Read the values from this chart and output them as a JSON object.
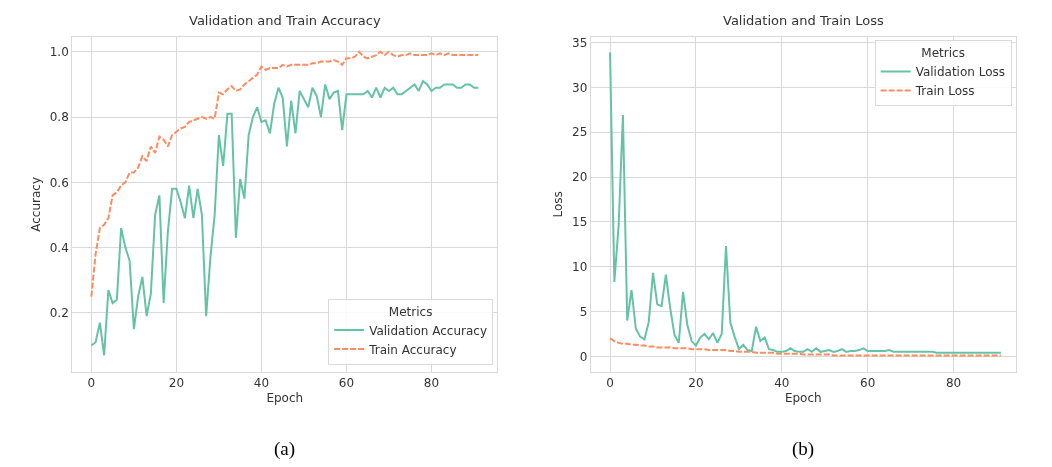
{
  "chart_data": [
    {
      "type": "line",
      "title": "Validation and Train Accuracy",
      "xlabel": "Epoch",
      "ylabel": "Accuracy",
      "legend_title": "Metrics",
      "legend": "bottom right",
      "grid": true,
      "marker": "none",
      "x": [
        0,
        1,
        2,
        3,
        4,
        5,
        6,
        7,
        8,
        9,
        10,
        11,
        12,
        13,
        14,
        15,
        16,
        17,
        18,
        19,
        20,
        21,
        22,
        23,
        24,
        25,
        26,
        27,
        28,
        29,
        30,
        31,
        32,
        33,
        34,
        35,
        36,
        37,
        38,
        39,
        40,
        41,
        42,
        43,
        44,
        45,
        46,
        47,
        48,
        49,
        50,
        51,
        52,
        53,
        54,
        55,
        56,
        57,
        58,
        59,
        60,
        61,
        62,
        63,
        64,
        65,
        66,
        67,
        68,
        69,
        70,
        71,
        72,
        73,
        74,
        75,
        76,
        77,
        78,
        79,
        80,
        81,
        82,
        83,
        84,
        85,
        86,
        87,
        88,
        89,
        90,
        91
      ],
      "xlim": [
        -4.5,
        95.5
      ],
      "xticks": [
        0,
        20,
        40,
        60,
        80
      ],
      "ylim": [
        0.02,
        1.045
      ],
      "yticks": [
        {
          "value": 0.2,
          "label": "0.2"
        },
        {
          "value": 0.4,
          "label": "0.4"
        },
        {
          "value": 0.6,
          "label": "0.6"
        },
        {
          "value": 0.8,
          "label": "0.8"
        },
        {
          "value": 1.0,
          "label": "1.0"
        }
      ],
      "series": [
        {
          "name": "Validation Accuracy",
          "color": "#66c2a5",
          "line_style": "solid",
          "values": [
            0.1,
            0.11,
            0.17,
            0.07,
            0.27,
            0.23,
            0.24,
            0.46,
            0.4,
            0.36,
            0.15,
            0.25,
            0.31,
            0.19,
            0.26,
            0.5,
            0.56,
            0.23,
            0.45,
            0.58,
            0.58,
            0.54,
            0.49,
            0.59,
            0.49,
            0.58,
            0.5,
            0.19,
            0.37,
            0.5,
            0.745,
            0.65,
            0.81,
            0.81,
            0.43,
            0.61,
            0.55,
            0.745,
            0.8,
            0.83,
            0.785,
            0.79,
            0.75,
            0.84,
            0.89,
            0.86,
            0.71,
            0.85,
            0.75,
            0.88,
            0.855,
            0.83,
            0.89,
            0.865,
            0.8,
            0.9,
            0.855,
            0.875,
            0.88,
            0.76,
            0.87,
            0.87,
            0.87,
            0.87,
            0.87,
            0.88,
            0.86,
            0.89,
            0.86,
            0.89,
            0.88,
            0.89,
            0.87,
            0.87,
            0.88,
            0.89,
            0.9,
            0.88,
            0.91,
            0.9,
            0.88,
            0.89,
            0.89,
            0.9,
            0.9,
            0.9,
            0.89,
            0.89,
            0.9,
            0.9,
            0.89,
            0.89
          ]
        },
        {
          "name": "Train Accuracy",
          "color": "#fc8d62",
          "line_style": "dashed",
          "values": [
            0.25,
            0.38,
            0.46,
            0.47,
            0.49,
            0.56,
            0.57,
            0.59,
            0.6,
            0.63,
            0.63,
            0.645,
            0.68,
            0.665,
            0.71,
            0.69,
            0.74,
            0.73,
            0.71,
            0.745,
            0.755,
            0.765,
            0.77,
            0.785,
            0.79,
            0.795,
            0.8,
            0.795,
            0.8,
            0.795,
            0.875,
            0.87,
            0.885,
            0.895,
            0.88,
            0.885,
            0.9,
            0.91,
            0.92,
            0.93,
            0.955,
            0.945,
            0.95,
            0.95,
            0.95,
            0.96,
            0.955,
            0.96,
            0.96,
            0.96,
            0.96,
            0.96,
            0.965,
            0.965,
            0.97,
            0.97,
            0.97,
            0.975,
            0.97,
            0.96,
            0.98,
            0.98,
            0.985,
            1.0,
            0.985,
            0.98,
            0.985,
            0.99,
            1.0,
            0.99,
            1.0,
            0.99,
            0.985,
            0.99,
            0.99,
            0.995,
            0.99,
            0.99,
            0.99,
            0.99,
            0.995,
            0.99,
            0.995,
            0.99,
            0.995,
            0.99,
            0.99,
            0.99,
            0.99,
            0.99,
            0.99,
            0.99
          ]
        }
      ],
      "annotations": [
        "(a)"
      ]
    },
    {
      "type": "line",
      "title": "Validation and Train Loss",
      "xlabel": "Epoch",
      "ylabel": "Loss",
      "legend_title": "Metrics",
      "legend": "top right",
      "grid": true,
      "marker": "none",
      "x": [
        0,
        1,
        2,
        3,
        4,
        5,
        6,
        7,
        8,
        9,
        10,
        11,
        12,
        13,
        14,
        15,
        16,
        17,
        18,
        19,
        20,
        21,
        22,
        23,
        24,
        25,
        26,
        27,
        28,
        29,
        30,
        31,
        32,
        33,
        34,
        35,
        36,
        37,
        38,
        39,
        40,
        41,
        42,
        43,
        44,
        45,
        46,
        47,
        48,
        49,
        50,
        51,
        52,
        53,
        54,
        55,
        56,
        57,
        58,
        59,
        60,
        61,
        62,
        63,
        64,
        65,
        66,
        67,
        68,
        69,
        70,
        71,
        72,
        73,
        74,
        75,
        76,
        77,
        78,
        79,
        80,
        81,
        82,
        83,
        84,
        85,
        86,
        87,
        88,
        89,
        90,
        91
      ],
      "xlim": [
        -4.5,
        94.5
      ],
      "xticks": [
        0,
        20,
        40,
        60,
        80
      ],
      "ylim": [
        -1.7,
        35.6
      ],
      "yticks": [
        0,
        5,
        10,
        15,
        20,
        25,
        30,
        35
      ],
      "series": [
        {
          "name": "Validation Loss",
          "color": "#66c2a5",
          "line_style": "solid",
          "values": [
            33.9,
            8.3,
            14.6,
            26.9,
            4.0,
            7.4,
            3.1,
            2.2,
            1.9,
            3.8,
            9.3,
            5.8,
            5.6,
            9.1,
            5.4,
            2.4,
            1.5,
            7.2,
            3.5,
            1.7,
            1.2,
            2.1,
            2.5,
            1.9,
            2.6,
            1.5,
            2.5,
            12.3,
            3.8,
            2.2,
            0.8,
            1.3,
            0.7,
            0.6,
            3.3,
            1.7,
            2.1,
            0.8,
            0.7,
            0.5,
            0.5,
            0.6,
            0.9,
            0.6,
            0.5,
            0.5,
            0.8,
            0.5,
            0.9,
            0.5,
            0.6,
            0.7,
            0.5,
            0.6,
            0.8,
            0.5,
            0.6,
            0.6,
            0.7,
            0.9,
            0.6,
            0.6,
            0.6,
            0.6,
            0.6,
            0.7,
            0.5,
            0.5,
            0.5,
            0.5,
            0.5,
            0.5,
            0.5,
            0.5,
            0.5,
            0.5,
            0.4,
            0.4,
            0.4,
            0.4,
            0.4,
            0.4,
            0.4,
            0.4,
            0.4,
            0.4,
            0.4,
            0.4,
            0.4,
            0.4,
            0.4,
            0.4
          ]
        },
        {
          "name": "Train Loss",
          "color": "#fc8d62",
          "line_style": "dashed",
          "values": [
            2.0,
            1.7,
            1.5,
            1.4,
            1.4,
            1.3,
            1.3,
            1.2,
            1.2,
            1.1,
            1.1,
            1.0,
            1.0,
            1.0,
            1.0,
            0.9,
            0.9,
            0.9,
            0.9,
            0.8,
            0.8,
            0.8,
            0.8,
            0.7,
            0.7,
            0.7,
            0.7,
            0.7,
            0.6,
            0.6,
            0.5,
            0.5,
            0.5,
            0.5,
            0.4,
            0.4,
            0.4,
            0.4,
            0.4,
            0.3,
            0.3,
            0.3,
            0.3,
            0.3,
            0.3,
            0.2,
            0.2,
            0.2,
            0.2,
            0.2,
            0.2,
            0.2,
            0.1,
            0.1,
            0.1,
            0.1,
            0.1,
            0.1,
            0.1,
            0.1,
            0.1,
            0.1,
            0.1,
            0.1,
            0.1,
            0.1,
            0.1,
            0.1,
            0.1,
            0.1,
            0.1,
            0.1,
            0.1,
            0.1,
            0.1,
            0.1,
            0.1,
            0.1,
            0.1,
            0.1,
            0.1,
            0.1,
            0.1,
            0.1,
            0.1,
            0.1,
            0.1,
            0.1,
            0.1,
            0.1,
            0.1,
            0.1
          ]
        }
      ],
      "annotations": [
        "(b)"
      ]
    }
  ]
}
